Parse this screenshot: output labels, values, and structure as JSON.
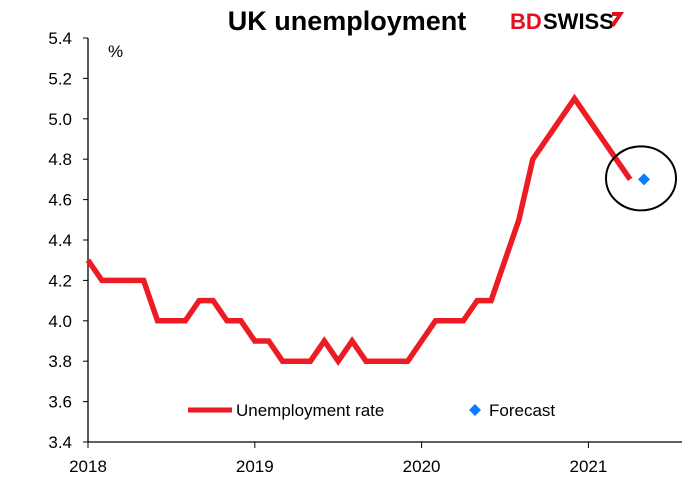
{
  "chart_data": {
    "type": "line",
    "title": "UK unemployment",
    "ylabel": "%",
    "xlabel": "",
    "ylim": [
      3.4,
      5.4
    ],
    "yticks": [
      "3.4",
      "3.6",
      "3.8",
      "4.0",
      "4.2",
      "4.4",
      "4.6",
      "4.8",
      "5.0",
      "5.2",
      "5.4"
    ],
    "xticks": [
      "2018",
      "2019",
      "2020",
      "2021"
    ],
    "grid": false,
    "legend_position": "bottom-center",
    "series": [
      {
        "name": "Unemployment rate",
        "color": "#ed1c24",
        "x_start": "2018-01",
        "frequency": "monthly",
        "values": [
          4.3,
          4.2,
          4.2,
          4.2,
          4.2,
          4.0,
          4.0,
          4.0,
          4.1,
          4.1,
          4.0,
          4.0,
          3.9,
          3.9,
          3.8,
          3.8,
          3.8,
          3.9,
          3.8,
          3.9,
          3.8,
          3.8,
          3.8,
          3.8,
          3.9,
          4.0,
          4.0,
          4.0,
          4.1,
          4.1,
          4.3,
          4.5,
          4.8,
          4.9,
          5.0,
          5.1,
          5.0,
          4.9,
          4.8,
          4.7
        ]
      },
      {
        "name": "Forecast",
        "color": "#0a7cff",
        "x": "2021-05",
        "value": 4.7
      }
    ],
    "annotations": [
      {
        "type": "circle",
        "around": "Forecast"
      }
    ]
  },
  "branding": {
    "logo": "BDSWISS",
    "logo_red": "BD",
    "logo_black": "SWISS",
    "color": "#e3101d"
  }
}
